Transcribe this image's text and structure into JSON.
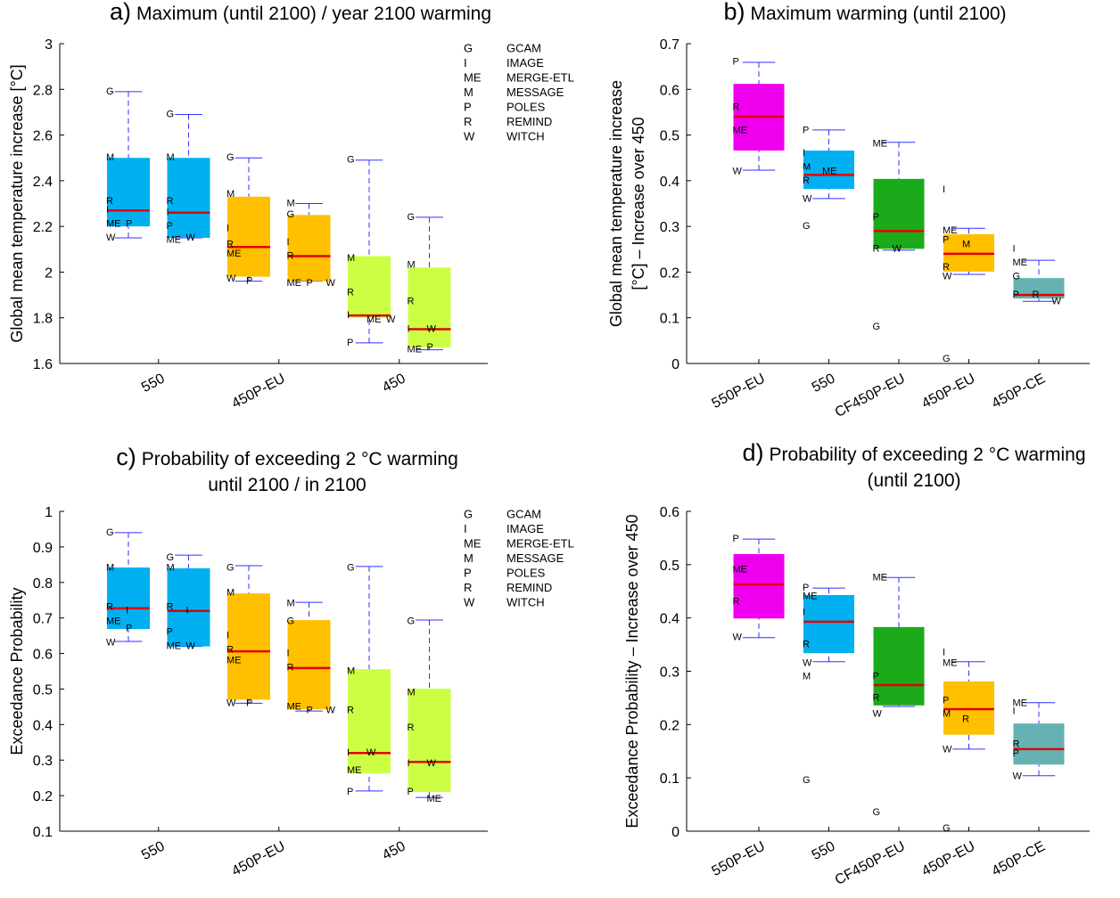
{
  "chart_data": [
    {
      "type": "box",
      "panel": "a)",
      "title": [
        "Maximum (until 2100) / year 2100 warming"
      ],
      "ylabel": [
        "Global mean temperature increase [°C]"
      ],
      "categories": [
        "550",
        "450P-EU",
        "450"
      ],
      "ylim": [
        1.6,
        3
      ],
      "yticks": [
        1.6,
        1.8,
        2,
        2.2,
        2.4,
        2.6,
        2.8,
        3
      ],
      "legend": [
        [
          "G",
          "GCAM"
        ],
        [
          "I",
          "IMAGE"
        ],
        [
          "ME",
          "MERGE-ETL"
        ],
        [
          "M",
          "MESSAGE"
        ],
        [
          "P",
          "POLES"
        ],
        [
          "R",
          "REMIND"
        ],
        [
          "W",
          "WITCH"
        ]
      ],
      "boxes": [
        {
          "color": "#00b0f0",
          "whisker": [
            2.15,
            2.79
          ],
          "q1": 2.2,
          "median": 2.27,
          "q3": 2.5,
          "points": [
            [
              "G",
              2.79
            ],
            [
              "M",
              2.5
            ],
            [
              "R",
              2.31
            ],
            [
              "I",
              2.27
            ],
            [
              "ME",
              2.21
            ],
            [
              "P",
              2.21
            ],
            [
              "W",
              2.15
            ]
          ]
        },
        {
          "color": "#00b0f0",
          "whisker": [
            2.15,
            2.69
          ],
          "q1": 2.15,
          "median": 2.26,
          "q3": 2.5,
          "points": [
            [
              "G",
              2.69
            ],
            [
              "M",
              2.5
            ],
            [
              "R",
              2.31
            ],
            [
              "I",
              2.26
            ],
            [
              "P",
              2.2
            ],
            [
              "ME",
              2.14
            ],
            [
              "W",
              2.15
            ]
          ]
        },
        {
          "color": "#ffc000",
          "whisker": [
            1.96,
            2.5
          ],
          "q1": 1.98,
          "median": 2.11,
          "q3": 2.33,
          "points": [
            [
              "G",
              2.5
            ],
            [
              "M",
              2.34
            ],
            [
              "I",
              2.19
            ],
            [
              "R",
              2.12
            ],
            [
              "ME",
              2.08
            ],
            [
              "W",
              1.97
            ],
            [
              "P",
              1.96
            ]
          ]
        },
        {
          "color": "#ffc000",
          "whisker": [
            1.96,
            2.3
          ],
          "q1": 1.96,
          "median": 2.07,
          "q3": 2.25,
          "points": [
            [
              "M",
              2.3
            ],
            [
              "G",
              2.25
            ],
            [
              "I",
              2.13
            ],
            [
              "R",
              2.07
            ],
            [
              "ME",
              1.95
            ],
            [
              "P",
              1.95
            ],
            [
              "W",
              1.95
            ]
          ]
        },
        {
          "color": "#ccff44",
          "whisker": [
            1.69,
            2.49
          ],
          "q1": 1.8,
          "median": 1.81,
          "q3": 2.07,
          "points": [
            [
              "G",
              2.49
            ],
            [
              "M",
              2.06
            ],
            [
              "R",
              1.91
            ],
            [
              "I",
              1.81
            ],
            [
              "ME",
              1.79
            ],
            [
              "W",
              1.79
            ],
            [
              "P",
              1.69
            ]
          ]
        },
        {
          "color": "#ccff44",
          "whisker": [
            1.66,
            2.24
          ],
          "q1": 1.67,
          "median": 1.75,
          "q3": 2.02,
          "points": [
            [
              "G",
              2.24
            ],
            [
              "M",
              2.03
            ],
            [
              "R",
              1.87
            ],
            [
              "I",
              1.75
            ],
            [
              "W",
              1.75
            ],
            [
              "ME",
              1.66
            ],
            [
              "P",
              1.67
            ]
          ]
        }
      ]
    },
    {
      "type": "box",
      "panel": "b)",
      "title": [
        "Maximum warming (until 2100)"
      ],
      "ylabel": [
        "Global mean temperature increase",
        "[°C] – Increase over 450"
      ],
      "categories": [
        "550P-EU",
        "550",
        "CF450P-EU",
        "450P-EU",
        "450P-CE"
      ],
      "ylim": [
        0,
        0.7
      ],
      "yticks": [
        0,
        0.1,
        0.2,
        0.3,
        0.4,
        0.5,
        0.6,
        0.7
      ],
      "boxes": [
        {
          "color": "#ee00ee",
          "whisker": [
            0.423,
            0.659
          ],
          "q1": 0.466,
          "median": 0.54,
          "q3": 0.612,
          "points": [
            [
              "P",
              0.66
            ],
            [
              "R",
              0.56
            ],
            [
              "ME",
              0.51
            ],
            [
              "W",
              0.42
            ]
          ]
        },
        {
          "color": "#00b0f0",
          "whisker": [
            0.361,
            0.511
          ],
          "q1": 0.382,
          "median": 0.413,
          "q3": 0.466,
          "points": [
            [
              "P",
              0.51
            ],
            [
              "I",
              0.46
            ],
            [
              "M",
              0.43
            ],
            [
              "ME",
              0.42
            ],
            [
              "R",
              0.4
            ],
            [
              "W",
              0.36
            ],
            [
              "G",
              0.3
            ]
          ]
        },
        {
          "color": "#1aaa1a",
          "whisker": [
            0.248,
            0.484
          ],
          "q1": 0.251,
          "median": 0.29,
          "q3": 0.404,
          "points": [
            [
              "ME",
              0.48
            ],
            [
              "P",
              0.32
            ],
            [
              "R",
              0.25
            ],
            [
              "W",
              0.25
            ],
            [
              "G",
              0.08
            ]
          ]
        },
        {
          "color": "#ffc000",
          "whisker": [
            0.195,
            0.296
          ],
          "q1": 0.201,
          "median": 0.24,
          "q3": 0.283,
          "points": [
            [
              "I",
              0.38
            ],
            [
              "ME",
              0.29
            ],
            [
              "P",
              0.27
            ],
            [
              "M",
              0.26
            ],
            [
              "R",
              0.21
            ],
            [
              "W",
              0.19
            ],
            [
              "G",
              0.01
            ]
          ]
        },
        {
          "color": "#66b2b2",
          "whisker": [
            0.136,
            0.226
          ],
          "q1": 0.142,
          "median": 0.15,
          "q3": 0.187,
          "points": [
            [
              "I",
              0.25
            ],
            [
              "ME",
              0.22
            ],
            [
              "G",
              0.19
            ],
            [
              "P",
              0.15
            ],
            [
              "R",
              0.15
            ],
            [
              "W",
              0.135
            ]
          ]
        }
      ]
    },
    {
      "type": "box",
      "panel": "c)",
      "title": [
        "Probability of exceeding 2 °C warming",
        "until 2100 / in 2100"
      ],
      "ylabel": [
        "Exceedance Probability"
      ],
      "categories": [
        "550",
        "450P-EU",
        "450"
      ],
      "ylim": [
        0.1,
        1
      ],
      "yticks": [
        0.1,
        0.2,
        0.3,
        0.4,
        0.5,
        0.6,
        0.7,
        0.8,
        0.9,
        1
      ],
      "legend": [
        [
          "G",
          "GCAM"
        ],
        [
          "I",
          "IMAGE"
        ],
        [
          "ME",
          "MERGE-ETL"
        ],
        [
          "M",
          "MESSAGE"
        ],
        [
          "P",
          "POLES"
        ],
        [
          "R",
          "REMIND"
        ],
        [
          "W",
          "WITCH"
        ]
      ],
      "boxes": [
        {
          "color": "#00b0f0",
          "whisker": [
            0.634,
            0.94
          ],
          "q1": 0.669,
          "median": 0.727,
          "q3": 0.842,
          "points": [
            [
              "G",
              0.94
            ],
            [
              "M",
              0.84
            ],
            [
              "R",
              0.73
            ],
            [
              "I",
              0.72
            ],
            [
              "ME",
              0.69
            ],
            [
              "P",
              0.67
            ],
            [
              "W",
              0.63
            ]
          ]
        },
        {
          "color": "#00b0f0",
          "whisker": [
            0.62,
            0.877
          ],
          "q1": 0.62,
          "median": 0.72,
          "q3": 0.84,
          "points": [
            [
              "G",
              0.87
            ],
            [
              "M",
              0.84
            ],
            [
              "R",
              0.73
            ],
            [
              "I",
              0.72
            ],
            [
              "P",
              0.66
            ],
            [
              "ME",
              0.62
            ],
            [
              "W",
              0.62
            ]
          ]
        },
        {
          "color": "#ffc000",
          "whisker": [
            0.46,
            0.847
          ],
          "q1": 0.47,
          "median": 0.606,
          "q3": 0.769,
          "points": [
            [
              "G",
              0.84
            ],
            [
              "M",
              0.77
            ],
            [
              "I",
              0.65
            ],
            [
              "R",
              0.61
            ],
            [
              "ME",
              0.58
            ],
            [
              "W",
              0.46
            ],
            [
              "P",
              0.46
            ]
          ]
        },
        {
          "color": "#ffc000",
          "whisker": [
            0.438,
            0.744
          ],
          "q1": 0.443,
          "median": 0.559,
          "q3": 0.694,
          "points": [
            [
              "M",
              0.74
            ],
            [
              "G",
              0.69
            ],
            [
              "I",
              0.6
            ],
            [
              "R",
              0.56
            ],
            [
              "ME",
              0.45
            ],
            [
              "P",
              0.44
            ],
            [
              "W",
              0.44
            ]
          ]
        },
        {
          "color": "#ccff44",
          "whisker": [
            0.213,
            0.845
          ],
          "q1": 0.263,
          "median": 0.32,
          "q3": 0.556,
          "points": [
            [
              "G",
              0.84
            ],
            [
              "M",
              0.55
            ],
            [
              "R",
              0.44
            ],
            [
              "I",
              0.32
            ],
            [
              "W",
              0.32
            ],
            [
              "ME",
              0.27
            ],
            [
              "P",
              0.21
            ]
          ]
        },
        {
          "color": "#ccff44",
          "whisker": [
            0.195,
            0.694
          ],
          "q1": 0.21,
          "median": 0.295,
          "q3": 0.501,
          "points": [
            [
              "G",
              0.69
            ],
            [
              "M",
              0.49
            ],
            [
              "R",
              0.39
            ],
            [
              "I",
              0.29
            ],
            [
              "W",
              0.29
            ],
            [
              "P",
              0.21
            ],
            [
              "ME",
              0.19
            ]
          ]
        }
      ]
    },
    {
      "type": "box",
      "panel": "d)",
      "title": [
        "Probability of exceeding 2 °C warming",
        "(until 2100)"
      ],
      "ylabel": [
        "Exceedance Probability – Increase over 450"
      ],
      "categories": [
        "550P-EU",
        "550",
        "CF450P-EU",
        "450P-EU",
        "450P-CE"
      ],
      "ylim": [
        0,
        0.6
      ],
      "yticks": [
        0,
        0.1,
        0.2,
        0.3,
        0.4,
        0.5,
        0.6
      ],
      "boxes": [
        {
          "color": "#ee00ee",
          "whisker": [
            0.363,
            0.548
          ],
          "q1": 0.399,
          "median": 0.463,
          "q3": 0.52,
          "points": [
            [
              "P",
              0.548
            ],
            [
              "ME",
              0.49
            ],
            [
              "R",
              0.43
            ],
            [
              "W",
              0.363
            ]
          ]
        },
        {
          "color": "#00b0f0",
          "whisker": [
            0.318,
            0.456
          ],
          "q1": 0.334,
          "median": 0.393,
          "q3": 0.443,
          "points": [
            [
              "P",
              0.456
            ],
            [
              "ME",
              0.44
            ],
            [
              "I",
              0.41
            ],
            [
              "R",
              0.35
            ],
            [
              "W",
              0.315
            ],
            [
              "M",
              0.29
            ],
            [
              "G",
              0.095
            ]
          ]
        },
        {
          "color": "#1aaa1a",
          "whisker": [
            0.234,
            0.476
          ],
          "q1": 0.236,
          "median": 0.274,
          "q3": 0.383,
          "points": [
            [
              "ME",
              0.475
            ],
            [
              "P",
              0.29
            ],
            [
              "R",
              0.25
            ],
            [
              "W",
              0.22
            ],
            [
              "G",
              0.035
            ]
          ]
        },
        {
          "color": "#ffc000",
          "whisker": [
            0.154,
            0.318
          ],
          "q1": 0.181,
          "median": 0.229,
          "q3": 0.281,
          "points": [
            [
              "I",
              0.335
            ],
            [
              "ME",
              0.315
            ],
            [
              "P",
              0.245
            ],
            [
              "M",
              0.22
            ],
            [
              "R",
              0.21
            ],
            [
              "W",
              0.153
            ],
            [
              "G",
              0.005
            ]
          ]
        },
        {
          "color": "#66b2b2",
          "whisker": [
            0.104,
            0.241
          ],
          "q1": 0.125,
          "median": 0.154,
          "q3": 0.202,
          "points": [
            [
              "ME",
              0.24
            ],
            [
              "I",
              0.225
            ],
            [
              "R",
              0.163
            ],
            [
              "P",
              0.145
            ],
            [
              "W",
              0.103
            ]
          ]
        }
      ]
    }
  ]
}
